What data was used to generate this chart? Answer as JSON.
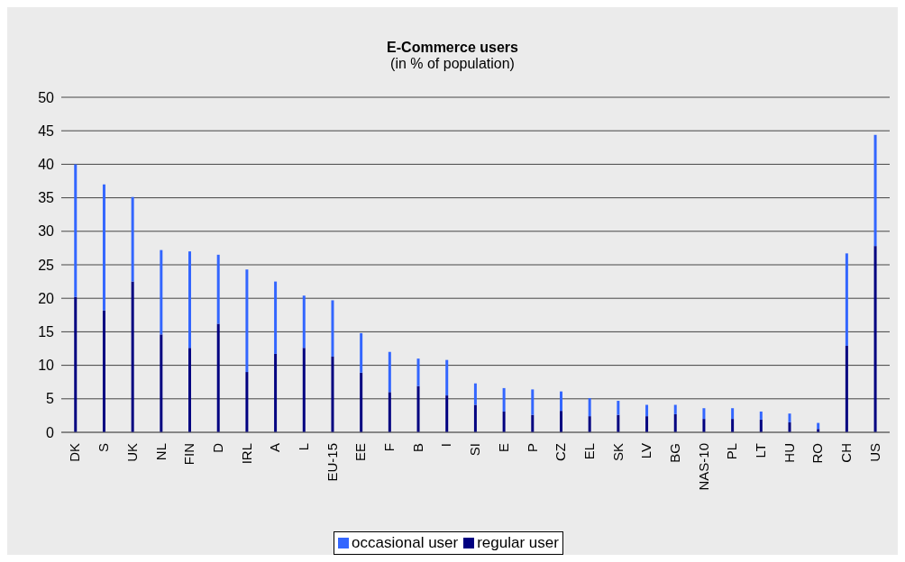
{
  "chart_data": {
    "type": "bar",
    "title": "E-Commerce users",
    "subtitle": "(in % of population)",
    "stacked": true,
    "categories": [
      "DK",
      "S",
      "UK",
      "NL",
      "FIN",
      "D",
      "IRL",
      "A",
      "L",
      "EU-15",
      "EE",
      "F",
      "B",
      "I",
      "SI",
      "E",
      "P",
      "CZ",
      "EL",
      "SK",
      "LV",
      "BG",
      "NAS-10",
      "PL",
      "LT",
      "HU",
      "RO",
      "CH",
      "US"
    ],
    "series": [
      {
        "name": "regular user",
        "color": "#000080",
        "values": [
          20.2,
          18.2,
          22.5,
          14.6,
          12.6,
          16.2,
          9.0,
          11.7,
          12.6,
          11.3,
          8.9,
          6.0,
          6.9,
          5.5,
          4.1,
          3.1,
          2.6,
          3.2,
          2.4,
          2.6,
          2.4,
          2.7,
          2.0,
          2.0,
          1.9,
          1.5,
          0.5,
          12.9,
          27.8
        ]
      },
      {
        "name": "occasional user",
        "color": "#3366ff",
        "values": [
          19.8,
          18.8,
          12.6,
          12.6,
          14.4,
          10.3,
          15.3,
          10.8,
          7.8,
          8.4,
          5.9,
          6.0,
          4.1,
          5.3,
          3.2,
          3.5,
          3.8,
          2.9,
          2.7,
          2.1,
          1.7,
          1.4,
          1.6,
          1.6,
          1.2,
          1.3,
          0.9,
          13.8,
          16.6
        ]
      }
    ],
    "ylim": [
      0,
      50
    ],
    "yticks": [
      0,
      5,
      10,
      15,
      20,
      25,
      30,
      35,
      40,
      45,
      50
    ],
    "grid": "y",
    "legend": "bottom"
  }
}
